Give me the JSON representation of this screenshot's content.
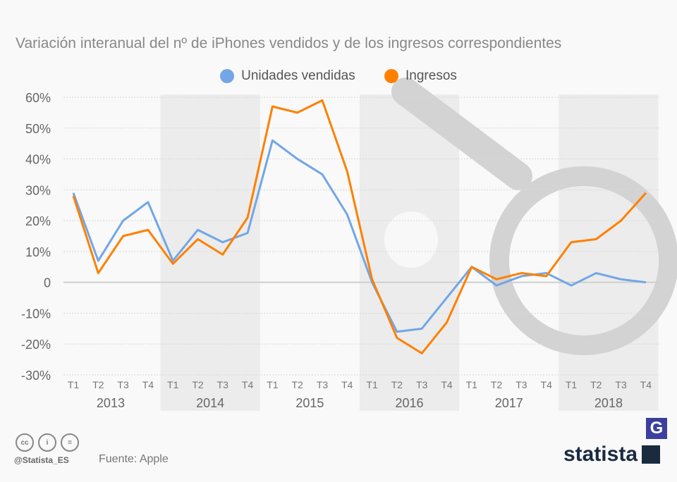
{
  "chart_data": {
    "type": "line",
    "title": "Variación interanual del nº de iPhones vendidos y de los ingresos correspondientes",
    "quarters": [
      "T1",
      "T2",
      "T3",
      "T4",
      "T1",
      "T2",
      "T3",
      "T4",
      "T1",
      "T2",
      "T3",
      "T4",
      "T1",
      "T2",
      "T3",
      "T4",
      "T1",
      "T2",
      "T3",
      "T4",
      "T1",
      "T2",
      "T3",
      "T4"
    ],
    "years": [
      "2013",
      "2014",
      "2015",
      "2016",
      "2017",
      "2018"
    ],
    "yticks": [
      "60%",
      "50%",
      "40%",
      "30%",
      "20%",
      "10%",
      "0",
      "-10%",
      "-20%",
      "-30%"
    ],
    "ylim": [
      -30,
      60
    ],
    "series": [
      {
        "name": "Unidades vendidas",
        "color": "#72a6e6",
        "values": [
          29,
          7,
          20,
          26,
          7,
          17,
          13,
          16,
          46,
          40,
          35,
          22,
          0,
          -16,
          -15,
          -5,
          5,
          -1,
          2,
          3,
          -1,
          3,
          1,
          0
        ]
      },
      {
        "name": "Ingresos",
        "color": "#ff8000",
        "values": [
          28,
          3,
          15,
          17,
          6,
          14,
          9,
          21,
          57,
          55,
          59,
          36,
          1,
          -18,
          -23,
          -13,
          5,
          1,
          3,
          2,
          13,
          14,
          20,
          29
        ]
      }
    ],
    "legend": "top-center"
  },
  "footer": {
    "handle": "@Statista_ES",
    "source": "Fuente: Apple",
    "logo": "statista",
    "cc": [
      "cc",
      "i",
      "="
    ]
  }
}
